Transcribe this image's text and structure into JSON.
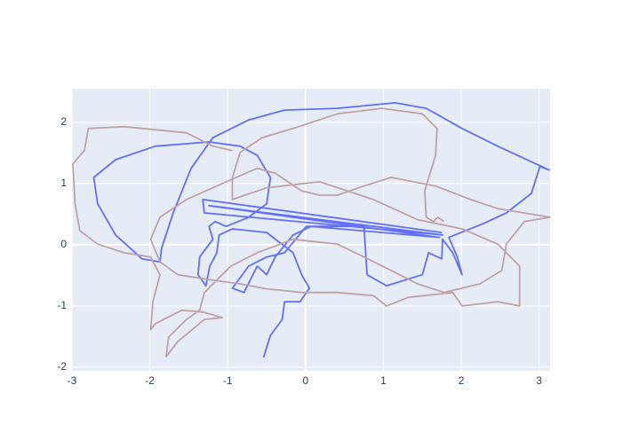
{
  "chart_data": {
    "type": "line",
    "xlim": [
      -3,
      3.14
    ],
    "ylim": [
      -2.06,
      2.55
    ],
    "xticks": [
      -3,
      -2,
      -1,
      0,
      1,
      2,
      3
    ],
    "yticks": [
      -2,
      -1,
      0,
      1,
      2
    ],
    "grid": true,
    "series": [
      {
        "color": "#636efa",
        "x": [
          1.75,
          -1.32,
          -1.3,
          1.76,
          -1.24,
          1.72,
          0.07,
          -0.16,
          -0.39,
          -0.5,
          -0.62,
          -0.79,
          -0.94,
          -0.73,
          -0.5,
          -0.27,
          0.01,
          0.75,
          0.79,
          1.04,
          1.5,
          1.58,
          1.75,
          1.76,
          1.89,
          2.01,
          1.95,
          1.84,
          2.29,
          2.58,
          2.9,
          3.01,
          3.13,
          2.47,
          2.01,
          1.55,
          1.15,
          0.41,
          -0.27,
          -0.73,
          -1.19,
          -1.47,
          -1.7,
          -1.85,
          -1.87,
          -2.1,
          -2.44,
          -2.67,
          -2.72,
          -2.44,
          -1.93,
          -1.24,
          -0.84,
          -0.62,
          -0.45,
          -0.5,
          -0.73,
          -1.02,
          -1.16,
          -1.24,
          -1.19,
          -1.36,
          -1.38,
          -1.28,
          -1.23,
          -1.14,
          -1.11,
          -0.94,
          -0.5,
          -0.16,
          -0.05,
          0.05,
          -0.07,
          -0.27,
          -0.3,
          -0.45,
          -0.54
        ],
        "values": [
          0.2,
          0.74,
          0.52,
          0.16,
          0.64,
          0.12,
          0.3,
          0.16,
          -0.2,
          -0.49,
          -0.35,
          -0.78,
          -0.71,
          -0.35,
          -0.2,
          -0.13,
          0.3,
          0.3,
          -0.49,
          -0.67,
          -0.49,
          -0.13,
          -0.23,
          0.09,
          -0.13,
          -0.49,
          -0.2,
          0.12,
          0.35,
          0.52,
          0.84,
          1.28,
          1.22,
          1.61,
          1.9,
          2.23,
          2.32,
          2.23,
          2.2,
          2.04,
          1.75,
          1.25,
          0.52,
          -0.06,
          -0.28,
          -0.23,
          0.16,
          0.67,
          1.1,
          1.39,
          1.61,
          1.68,
          1.61,
          1.46,
          1.1,
          0.67,
          0.45,
          0.3,
          0.38,
          0.3,
          0.09,
          -0.2,
          -0.49,
          -0.67,
          -0.35,
          -0.13,
          0.16,
          0.26,
          0.2,
          -0.13,
          -0.49,
          -0.71,
          -0.93,
          -0.93,
          -1.22,
          -1.48,
          -1.84
        ]
      },
      {
        "color": "#bfa2a8",
        "x": [
          1.78,
          1.7,
          1.64,
          1.55,
          1.53,
          1.67,
          1.69,
          1.5,
          0.98,
          0.41,
          -0.16,
          -0.56,
          -0.84,
          -0.94,
          -0.94,
          -0.5,
          0.18,
          0.87,
          1.44,
          2.01,
          2.47,
          2.75,
          2.75,
          2.47,
          2.01,
          1.89,
          1.32,
          1.04,
          0.87,
          0.41,
          -0.05,
          -0.5,
          -0.84,
          -1.24,
          -1.64,
          -1.87,
          -1.99,
          -1.87,
          -1.53,
          -1.02,
          -0.62,
          -0.39,
          -0.05,
          0.18,
          0.41,
          0.75,
          1.1,
          1.67,
          2.12,
          2.47,
          3.14,
          2.81,
          2.58,
          2.52,
          2.24,
          1.78,
          1.44,
          1.1,
          0.75,
          0.41,
          -0.16,
          -0.62,
          -0.96,
          -1.3,
          -1.36,
          -1.53,
          -1.76,
          -1.79,
          -1.64,
          -1.3,
          -1.07,
          -1.32,
          -1.59,
          -1.93,
          -1.99,
          -1.96,
          -1.87,
          -1.99,
          -2.33,
          -2.67,
          -2.9,
          -2.96,
          -2.99,
          -2.84,
          -2.79,
          -2.33,
          -1.53,
          -1.19,
          -0.94
        ],
        "values": [
          0.38,
          0.45,
          0.38,
          0.45,
          0.88,
          1.46,
          1.9,
          2.14,
          2.23,
          2.14,
          1.9,
          1.75,
          1.51,
          1.1,
          0.74,
          0.93,
          1.03,
          0.74,
          0.41,
          0.26,
          0.01,
          -0.35,
          -1.0,
          -0.93,
          -1.0,
          -0.78,
          -0.86,
          -1.0,
          -0.83,
          -0.78,
          -0.78,
          -0.72,
          -0.64,
          -0.57,
          -0.49,
          -0.28,
          0.09,
          0.45,
          0.74,
          1.03,
          1.25,
          1.17,
          0.88,
          0.81,
          0.81,
          0.96,
          1.1,
          0.96,
          0.74,
          0.59,
          0.45,
          0.38,
          0.01,
          -0.42,
          -0.64,
          -0.78,
          -0.64,
          -0.42,
          -0.2,
          0.01,
          0.09,
          -0.13,
          -0.35,
          -0.78,
          -1.07,
          -1.22,
          -1.51,
          -1.83,
          -1.58,
          -1.22,
          -1.19,
          -1.1,
          -1.07,
          -1.29,
          -1.39,
          -0.93,
          -0.49,
          -0.2,
          -0.13,
          0.01,
          0.23,
          0.67,
          1.32,
          1.54,
          1.9,
          1.93,
          1.83,
          1.61,
          1.54
        ]
      }
    ]
  }
}
